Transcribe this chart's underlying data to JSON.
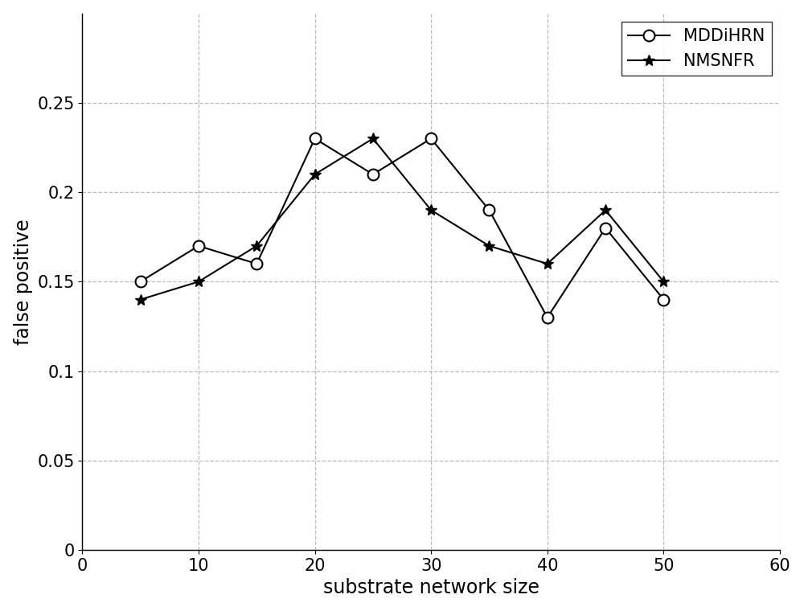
{
  "x": [
    5,
    10,
    15,
    20,
    25,
    30,
    35,
    40,
    45,
    50
  ],
  "MDDiHRN": [
    0.15,
    0.17,
    0.16,
    0.23,
    0.21,
    0.23,
    0.19,
    0.13,
    0.18,
    0.14
  ],
  "NMSNFR": [
    0.14,
    0.15,
    0.17,
    0.21,
    0.23,
    0.19,
    0.17,
    0.16,
    0.19,
    0.15
  ],
  "xlabel": "substrate network size",
  "ylabel": "false positive",
  "xlim": [
    0,
    60
  ],
  "ylim": [
    0,
    0.3
  ],
  "xticks": [
    0,
    10,
    20,
    30,
    40,
    50,
    60
  ],
  "yticks": [
    0,
    0.05,
    0.1,
    0.15,
    0.2,
    0.25
  ],
  "ytick_labels": [
    "0",
    "0.05",
    "0.1",
    "0.15",
    "0.2",
    "0.25"
  ],
  "legend_labels": [
    "MDDiHRN",
    "NMSNFR"
  ],
  "line_color": "#000000",
  "grid_color": "#bbbbbb",
  "marker_MDDiHRN": "o",
  "marker_NMSNFR": "*",
  "xlabel_fontsize": 17,
  "ylabel_fontsize": 17,
  "tick_fontsize": 15,
  "legend_fontsize": 15
}
